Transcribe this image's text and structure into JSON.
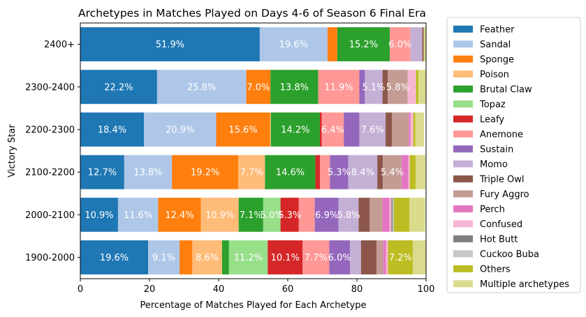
{
  "chart_data": {
    "type": "bar",
    "orientation": "horizontal",
    "stacked": true,
    "title": "Archetypes in Matches Played on Days 4-6 of Season 6 Final Era",
    "xlabel": "Percentage of Matches Played for Each Archetype",
    "ylabel": "Victory Star",
    "xlim": [
      0,
      100
    ],
    "xticks": [
      "0",
      "20",
      "40",
      "60",
      "80",
      "100"
    ],
    "categories": [
      "2400+",
      "2300-2400",
      "2200-2300",
      "2100-2200",
      "2000-2100",
      "1900-2000"
    ],
    "legend_position": "outside-right",
    "label_threshold": 5,
    "series": [
      {
        "name": "Feather",
        "color": "#1f77b4",
        "values": [
          51.9,
          22.2,
          18.4,
          12.7,
          10.9,
          19.6
        ]
      },
      {
        "name": "Sandal",
        "color": "#aec7e8",
        "values": [
          19.6,
          25.8,
          20.9,
          13.8,
          11.6,
          9.1
        ]
      },
      {
        "name": "Sponge",
        "color": "#ff7f0e",
        "values": [
          2.8,
          7.0,
          15.6,
          19.2,
          12.4,
          3.7
        ]
      },
      {
        "name": "Poison",
        "color": "#ffbb78",
        "values": [
          0.0,
          0.0,
          0.2,
          7.7,
          10.9,
          8.6
        ]
      },
      {
        "name": "Brutal Claw",
        "color": "#2ca02c",
        "values": [
          15.2,
          13.8,
          14.2,
          14.6,
          7.1,
          2.0
        ]
      },
      {
        "name": "Topaz",
        "color": "#98df8a",
        "values": [
          0.0,
          0.0,
          0.0,
          0.0,
          5.0,
          11.2
        ]
      },
      {
        "name": "Leafy",
        "color": "#d62728",
        "values": [
          0.0,
          0.0,
          0.5,
          1.3,
          5.3,
          10.1
        ]
      },
      {
        "name": "Anemone",
        "color": "#ff9896",
        "values": [
          6.0,
          11.9,
          6.4,
          2.9,
          4.6,
          7.7
        ]
      },
      {
        "name": "Sustain",
        "color": "#9467bd",
        "values": [
          0.0,
          1.6,
          4.5,
          5.3,
          6.9,
          6.0
        ]
      },
      {
        "name": "Momo",
        "color": "#c5b0d5",
        "values": [
          3.4,
          5.1,
          7.6,
          8.4,
          5.8,
          3.2
        ]
      },
      {
        "name": "Triple Owl",
        "color": "#8c564b",
        "values": [
          0.4,
          1.5,
          1.8,
          1.6,
          3.2,
          4.5
        ]
      },
      {
        "name": "Fury Aggro",
        "color": "#c49c94",
        "values": [
          0.0,
          5.8,
          4.9,
          5.4,
          3.7,
          1.9
        ]
      },
      {
        "name": "Perch",
        "color": "#e377c2",
        "values": [
          0.0,
          0.0,
          0.5,
          2.0,
          2.0,
          0.8
        ]
      },
      {
        "name": "Confused",
        "color": "#f7b6d2",
        "values": [
          0.0,
          2.4,
          0.8,
          0.4,
          0.6,
          0.6
        ]
      },
      {
        "name": "Hot Butt",
        "color": "#7f7f7f",
        "values": [
          0.0,
          0.0,
          0.0,
          0.0,
          0.3,
          0.0
        ]
      },
      {
        "name": "Cuckoo Buba",
        "color": "#c7c7c7",
        "values": [
          0.0,
          0.0,
          0.0,
          0.0,
          0.4,
          0.0
        ]
      },
      {
        "name": "Others",
        "color": "#bcbd22",
        "values": [
          0.0,
          0.7,
          0.6,
          1.7,
          4.5,
          7.2
        ]
      },
      {
        "name": "Multiple archetypes",
        "color": "#dbdb8d",
        "values": [
          0.7,
          2.2,
          2.5,
          2.8,
          4.5,
          3.8
        ]
      }
    ]
  }
}
